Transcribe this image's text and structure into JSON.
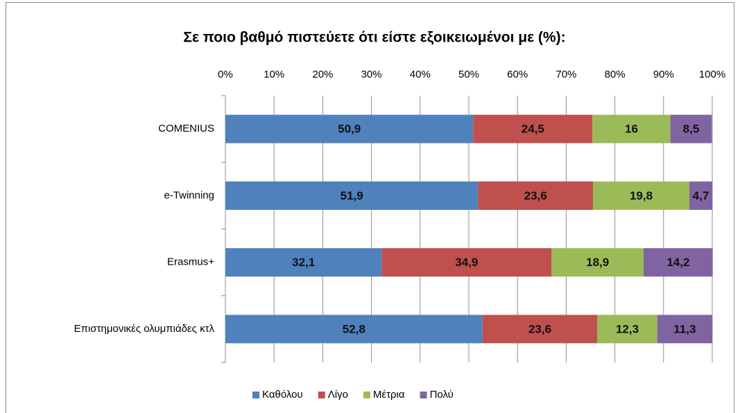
{
  "chart_data": {
    "type": "bar",
    "orientation": "horizontal",
    "stacked": true,
    "title": "Σε ποιο βαθμό πιστεύετε ότι είστε εξοικειωμένοι με (%):",
    "categories": [
      "COMENIUS",
      "e-Twinning",
      "Erasmus+",
      "Επιστημονικές ολυμπιάδες κτλ"
    ],
    "series": [
      {
        "name": "Καθόλου",
        "color": "#4f81bd",
        "values": [
          50.9,
          51.9,
          32.1,
          52.8
        ],
        "value_labels": [
          "50,9",
          "51,9",
          "32,1",
          "52,8"
        ]
      },
      {
        "name": "Λίγο",
        "color": "#c0504d",
        "values": [
          24.5,
          23.6,
          34.9,
          23.6
        ],
        "value_labels": [
          "24,5",
          "23,6",
          "34,9",
          "23,6"
        ]
      },
      {
        "name": "Μέτρια",
        "color": "#9bbb59",
        "values": [
          16,
          19.8,
          18.9,
          12.3
        ],
        "value_labels": [
          "16",
          "19,8",
          "18,9",
          "12,3"
        ]
      },
      {
        "name": "Πολύ",
        "color": "#8064a2",
        "values": [
          8.5,
          4.7,
          14.2,
          11.3
        ],
        "value_labels": [
          "8,5",
          "4,7",
          "14,2",
          "11,3"
        ]
      }
    ],
    "xlim": [
      0,
      100
    ],
    "xticks": [
      {
        "value": 0,
        "label": "0%"
      },
      {
        "value": 10,
        "label": "10%"
      },
      {
        "value": 20,
        "label": "20%"
      },
      {
        "value": 30,
        "label": "30%"
      },
      {
        "value": 40,
        "label": "40%"
      },
      {
        "value": 50,
        "label": "50%"
      },
      {
        "value": 60,
        "label": "60%"
      },
      {
        "value": 70,
        "label": "70%"
      },
      {
        "value": 80,
        "label": "80%"
      },
      {
        "value": 90,
        "label": "90%"
      },
      {
        "value": 100,
        "label": "100%"
      }
    ],
    "grid": true,
    "legend": "bottom"
  }
}
